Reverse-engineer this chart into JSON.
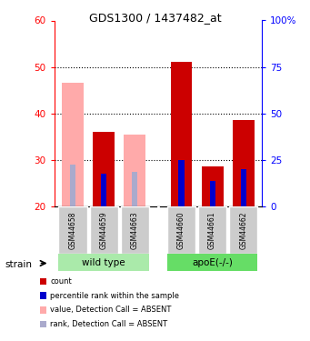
{
  "title": "GDS1300 / 1437482_at",
  "samples": [
    "GSM44658",
    "GSM44659",
    "GSM44663",
    "GSM44660",
    "GSM44661",
    "GSM44662"
  ],
  "absent": [
    true,
    false,
    true,
    false,
    false,
    false
  ],
  "value_bars": [
    46.5,
    36.0,
    35.5,
    51.0,
    28.5,
    38.5
  ],
  "rank_bars": [
    29.0,
    27.0,
    27.5,
    30.0,
    25.5,
    28.0
  ],
  "ylim_left": [
    20,
    60
  ],
  "ylim_right": [
    0,
    100
  ],
  "yticks_left": [
    20,
    30,
    40,
    50,
    60
  ],
  "yticks_right": [
    0,
    25,
    50,
    75,
    100
  ],
  "yticklabels_right": [
    "0",
    "25",
    "50",
    "75",
    "100%"
  ],
  "color_value_present": "#cc0000",
  "color_rank_present": "#0000cc",
  "color_value_absent": "#ffaaaa",
  "color_rank_absent": "#aaaacc",
  "color_wt_bg": "#aaeaaa",
  "color_apoe_bg": "#66dd66",
  "color_sample_bg": "#cccccc",
  "x_positions": [
    0,
    1,
    2,
    3.5,
    4.5,
    5.5
  ],
  "xlim": [
    -0.6,
    6.1
  ],
  "val_bar_width": 0.7,
  "rank_bar_width": 0.18
}
